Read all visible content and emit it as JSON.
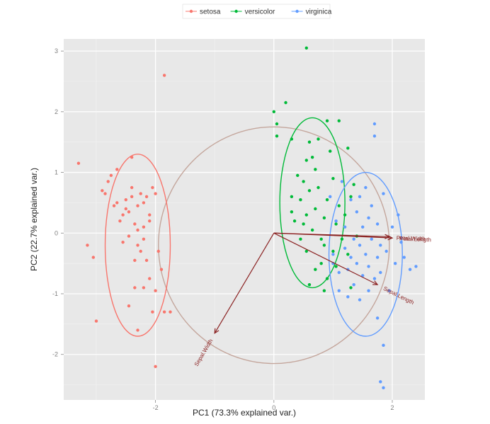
{
  "chart_data": {
    "type": "scatter",
    "xlabel": "PC1 (73.3% explained var.)",
    "ylabel": "PC2 (22.7% explained var.)",
    "xlim": [
      -3.55,
      2.55
    ],
    "ylim": [
      -2.75,
      3.2
    ],
    "xticks": [
      -2,
      0,
      2
    ],
    "yticks": [
      -2,
      -1,
      0,
      1,
      2,
      3
    ],
    "grid": true,
    "legend_position": "top",
    "series": [
      {
        "name": "setosa",
        "color": "#F8766D",
        "points": [
          [
            -3.3,
            1.15
          ],
          [
            -3.15,
            -0.2
          ],
          [
            -3.05,
            -0.4
          ],
          [
            -3.0,
            -1.45
          ],
          [
            -2.9,
            0.7
          ],
          [
            -2.85,
            0.65
          ],
          [
            -2.8,
            0.85
          ],
          [
            -2.75,
            0.95
          ],
          [
            -2.7,
            0.45
          ],
          [
            -2.65,
            0.5
          ],
          [
            -2.65,
            1.05
          ],
          [
            -2.6,
            0.2
          ],
          [
            -2.55,
            0.3
          ],
          [
            -2.55,
            -0.15
          ],
          [
            -2.5,
            0.4
          ],
          [
            -2.5,
            0.55
          ],
          [
            -2.45,
            0.35
          ],
          [
            -2.45,
            -0.05
          ],
          [
            -2.45,
            -1.2
          ],
          [
            -2.4,
            1.25
          ],
          [
            -2.4,
            0.6
          ],
          [
            -2.4,
            0.75
          ],
          [
            -2.35,
            0.15
          ],
          [
            -2.35,
            -0.45
          ],
          [
            -2.35,
            -0.9
          ],
          [
            -2.3,
            0.05
          ],
          [
            -2.3,
            0.45
          ],
          [
            -2.3,
            -0.2
          ],
          [
            -2.3,
            -1.6
          ],
          [
            -2.25,
            0.65
          ],
          [
            -2.25,
            -0.3
          ],
          [
            -2.2,
            0.1
          ],
          [
            -2.2,
            0.5
          ],
          [
            -2.2,
            -0.1
          ],
          [
            -2.2,
            -0.9
          ],
          [
            -2.15,
            0.6
          ],
          [
            -2.15,
            -0.45
          ],
          [
            -2.1,
            0.2
          ],
          [
            -2.1,
            0.3
          ],
          [
            -2.1,
            -0.75
          ],
          [
            -2.05,
            0.75
          ],
          [
            -2.05,
            -1.3
          ],
          [
            -2.0,
            0.65
          ],
          [
            -2.0,
            -0.95
          ],
          [
            -2.0,
            -2.2
          ],
          [
            -1.95,
            -0.3
          ],
          [
            -1.9,
            -0.6
          ],
          [
            -1.85,
            2.6
          ],
          [
            -1.85,
            -1.3
          ],
          [
            -1.75,
            -1.3
          ]
        ]
      },
      {
        "name": "versicolor",
        "color": "#00BA38",
        "points": [
          [
            0.0,
            2.0
          ],
          [
            0.05,
            1.6
          ],
          [
            0.05,
            1.8
          ],
          [
            0.2,
            2.15
          ],
          [
            0.3,
            1.55
          ],
          [
            0.55,
            3.05
          ],
          [
            0.3,
            0.6
          ],
          [
            0.3,
            0.35
          ],
          [
            0.35,
            0.2
          ],
          [
            0.4,
            0.95
          ],
          [
            0.45,
            0.55
          ],
          [
            0.45,
            -0.1
          ],
          [
            0.5,
            0.85
          ],
          [
            0.5,
            0.15
          ],
          [
            0.55,
            1.2
          ],
          [
            0.55,
            0.3
          ],
          [
            0.55,
            -0.3
          ],
          [
            0.6,
            1.5
          ],
          [
            0.6,
            0.7
          ],
          [
            0.6,
            -0.85
          ],
          [
            0.65,
            1.25
          ],
          [
            0.65,
            0.05
          ],
          [
            0.7,
            1.05
          ],
          [
            0.7,
            0.4
          ],
          [
            0.7,
            -0.6
          ],
          [
            0.75,
            1.55
          ],
          [
            0.75,
            0.75
          ],
          [
            0.8,
            -0.1
          ],
          [
            0.8,
            -0.5
          ],
          [
            0.85,
            0.25
          ],
          [
            0.85,
            -0.2
          ],
          [
            0.85,
            -0.95
          ],
          [
            0.9,
            0.55
          ],
          [
            0.9,
            1.85
          ],
          [
            0.9,
            -0.75
          ],
          [
            0.95,
            1.35
          ],
          [
            1.0,
            0.9
          ],
          [
            1.0,
            -0.3
          ],
          [
            1.05,
            0.15
          ],
          [
            1.05,
            -0.55
          ],
          [
            1.1,
            1.85
          ],
          [
            1.1,
            0.45
          ],
          [
            1.15,
            -0.1
          ],
          [
            1.2,
            0.3
          ],
          [
            1.25,
            1.4
          ],
          [
            1.25,
            -0.35
          ],
          [
            1.3,
            -0.9
          ],
          [
            1.3,
            0.6
          ],
          [
            1.35,
            0.8
          ],
          [
            1.4,
            -0.05
          ]
        ]
      },
      {
        "name": "virginica",
        "color": "#619CFF",
        "points": [
          [
            0.95,
            0.6
          ],
          [
            1.0,
            -0.35
          ],
          [
            1.0,
            -0.5
          ],
          [
            1.05,
            0.2
          ],
          [
            1.1,
            -0.65
          ],
          [
            1.1,
            -0.95
          ],
          [
            1.15,
            0.85
          ],
          [
            1.2,
            0.1
          ],
          [
            1.2,
            -0.25
          ],
          [
            1.25,
            -0.6
          ],
          [
            1.25,
            -1.05
          ],
          [
            1.3,
            0.55
          ],
          [
            1.3,
            -0.4
          ],
          [
            1.35,
            -0.1
          ],
          [
            1.35,
            -0.85
          ],
          [
            1.4,
            0.35
          ],
          [
            1.4,
            -0.5
          ],
          [
            1.45,
            0.6
          ],
          [
            1.45,
            -0.2
          ],
          [
            1.45,
            -1.1
          ],
          [
            1.5,
            0.1
          ],
          [
            1.5,
            -0.7
          ],
          [
            1.55,
            0.75
          ],
          [
            1.55,
            -0.35
          ],
          [
            1.6,
            0.25
          ],
          [
            1.6,
            -0.55
          ],
          [
            1.6,
            -0.95
          ],
          [
            1.65,
            0.45
          ],
          [
            1.65,
            -0.1
          ],
          [
            1.7,
            -0.75
          ],
          [
            1.7,
            1.6
          ],
          [
            1.7,
            1.8
          ],
          [
            1.75,
            0.15
          ],
          [
            1.75,
            -0.4
          ],
          [
            1.75,
            -1.4
          ],
          [
            1.8,
            -0.2
          ],
          [
            1.8,
            -0.65
          ],
          [
            1.85,
            -1.85
          ],
          [
            1.85,
            0.65
          ],
          [
            1.9,
            -0.3
          ],
          [
            1.95,
            -0.95
          ],
          [
            2.0,
            0.1
          ],
          [
            2.05,
            -0.5
          ],
          [
            2.1,
            0.3
          ],
          [
            2.15,
            -0.15
          ],
          [
            2.2,
            -0.4
          ],
          [
            2.3,
            -0.6
          ],
          [
            2.4,
            -0.55
          ],
          [
            1.8,
            -2.45
          ],
          [
            1.85,
            -2.55
          ]
        ]
      }
    ],
    "ellipses": [
      {
        "series": "setosa",
        "color": "#F8766D",
        "cx": -2.3,
        "cy": -0.2,
        "rx": 0.55,
        "ry": 1.5
      },
      {
        "series": "versicolor",
        "color": "#00BA38",
        "cx": 0.65,
        "cy": 0.5,
        "rx": 0.55,
        "ry": 1.4
      },
      {
        "series": "virginica",
        "color": "#619CFF",
        "cx": 1.55,
        "cy": -0.35,
        "rx": 0.62,
        "ry": 1.35
      }
    ],
    "circle": {
      "cx": 0,
      "cy": -0.2,
      "r": 1.95,
      "color": "#c4a69c"
    },
    "loadings": [
      {
        "label": "Petal.Length",
        "x": 2.0,
        "y": -0.08
      },
      {
        "label": "Petal.Width",
        "x": 1.95,
        "y": -0.06
      },
      {
        "label": "Sepal.Length",
        "x": 1.75,
        "y": -0.85
      },
      {
        "label": "Sepal.Width",
        "x": -1.0,
        "y": -1.65
      }
    ],
    "loading_color": "#8b2323"
  }
}
